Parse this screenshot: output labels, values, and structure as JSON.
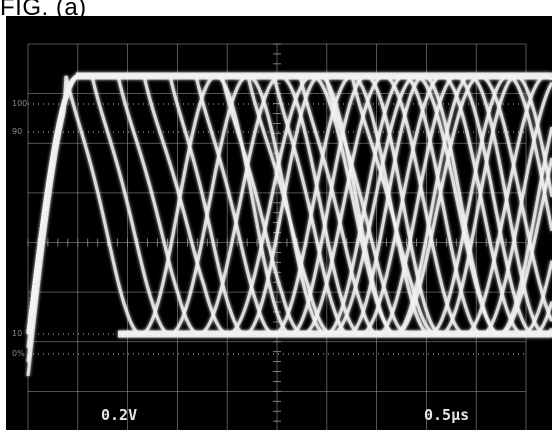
{
  "figure_label": "FIG. (a)",
  "scope": {
    "volts_per_div": "0.2V",
    "time_per_div": "0.5μs",
    "graticule_marks": [
      "100",
      "90",
      "10",
      "0%"
    ],
    "trace_color": "#f2f2f2",
    "background_color": "#000000",
    "graticule_color": "#9a9a9a",
    "trace_count": 12
  }
}
